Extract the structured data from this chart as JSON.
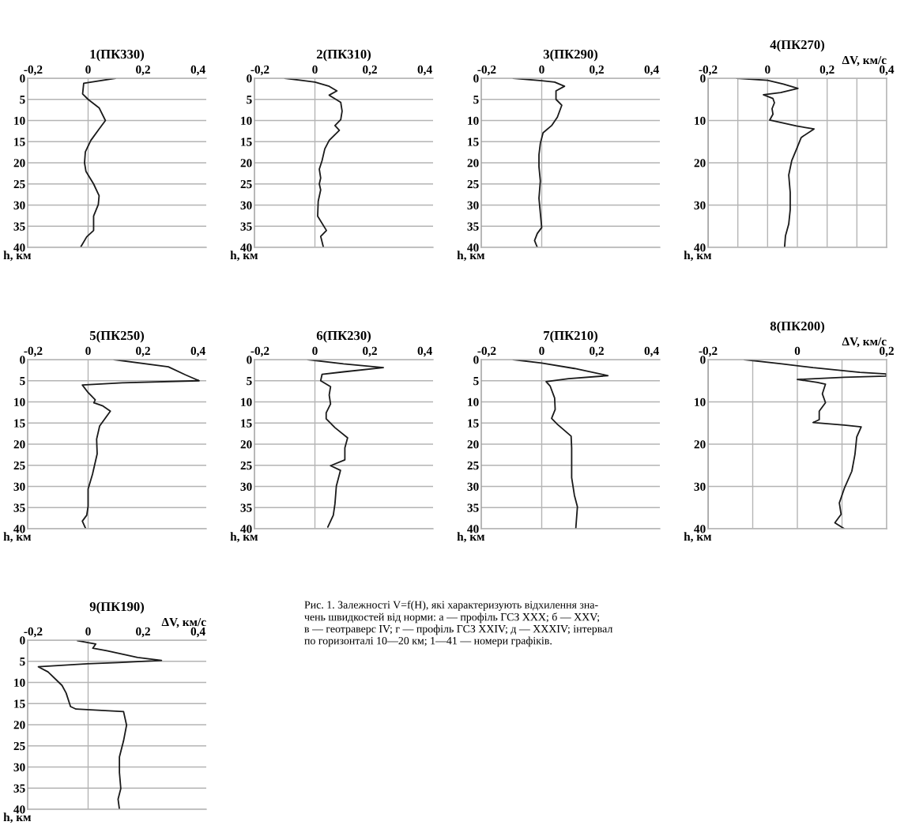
{
  "chart_data": [
    {
      "type": "line",
      "title": "1(ПК330)",
      "ylabel": "h, км",
      "xlim": [
        -0.22,
        0.43
      ],
      "xticks": [
        {
          "value": -0.2,
          "label": "-0,2"
        },
        0,
        {
          "value": 0.2,
          "label": "0,2"
        },
        {
          "value": 0.4,
          "label": "0,4"
        }
      ],
      "ylim": [
        40,
        0
      ],
      "yticks": [
        0,
        5,
        10,
        15,
        20,
        25,
        30,
        35,
        40
      ],
      "grid": "y",
      "ref_lines": [
        {
          "axis": "x",
          "value": 0,
          "color": "#b4b4b4"
        }
      ],
      "series": [
        {
          "color": "#1a1a1a",
          "x": [
            0.1,
            -0.016,
            -0.02,
            0,
            0.04,
            0.063,
            0.04,
            0.01,
            -0.01,
            -0.013,
            -0.008,
            0.02,
            0.04,
            0.037,
            0.02,
            0.02,
            -0.005,
            -0.026
          ],
          "values": [
            0,
            1.2,
            3.7,
            5,
            7,
            10,
            12,
            14.7,
            17.4,
            20,
            22,
            25,
            27.8,
            29.9,
            32.6,
            36,
            37.5,
            39.8
          ]
        }
      ]
    },
    {
      "type": "line",
      "title": "2(ПК310)",
      "ylabel": "h, км",
      "xlim": [
        -0.22,
        0.43
      ],
      "xticks": [
        {
          "value": -0.2,
          "label": "-0,2"
        },
        0,
        {
          "value": 0.2,
          "label": "0,2"
        },
        {
          "value": 0.4,
          "label": "0,4"
        }
      ],
      "ylim": [
        40,
        0
      ],
      "yticks": [
        0,
        5,
        10,
        15,
        20,
        25,
        30,
        35,
        40
      ],
      "grid": "y",
      "ref_lines": [
        {
          "axis": "x",
          "value": 0,
          "color": "#b4b4b4"
        }
      ],
      "series": [
        {
          "color": "#1a1a1a",
          "x": [
            -0.11,
            -0.05,
            0,
            0.052,
            0.08,
            0.052,
            0.094,
            0.099,
            0.094,
            0.073,
            0.089,
            0.052,
            0.036,
            0.026,
            0.016,
            0.021,
            0.016,
            0.021,
            0.012,
            0.01,
            0.042,
            0.021,
            0.031
          ],
          "values": [
            0,
            0.5,
            0.9,
            1.9,
            3,
            4,
            5.7,
            7.8,
            9.8,
            11.2,
            12.3,
            14.7,
            16.7,
            19.5,
            21.5,
            23.6,
            25,
            26.4,
            29.1,
            32.6,
            36,
            37.4,
            40
          ]
        }
      ]
    },
    {
      "type": "line",
      "title": "3(ПК290)",
      "ylabel": "h, км",
      "xlim": [
        -0.22,
        0.43
      ],
      "xticks": [
        {
          "value": -0.2,
          "label": "-0,2"
        },
        0,
        {
          "value": 0.2,
          "label": "0,2"
        },
        {
          "value": 0.4,
          "label": "0,4"
        }
      ],
      "ylim": [
        40,
        0
      ],
      "yticks": [
        0,
        5,
        10,
        15,
        20,
        25,
        30,
        35,
        40
      ],
      "grid": "y",
      "ref_lines": [
        {
          "axis": "x",
          "value": 0,
          "color": "#b4b4b4"
        }
      ],
      "series": [
        {
          "color": "#1a1a1a",
          "x": [
            -0.104,
            0,
            0.047,
            0.083,
            0.052,
            0.052,
            0.073,
            0.057,
            0.036,
            0.005,
            -0.005,
            -0.01,
            -0.01,
            -0.005,
            -0.01,
            -0.005,
            0,
            -0.016,
            -0.026,
            -0.016
          ],
          "values": [
            0,
            0.6,
            0.9,
            1.9,
            3,
            5,
            6.4,
            9.2,
            11.2,
            12.9,
            15.4,
            18.1,
            20.9,
            24.3,
            28.4,
            31.9,
            35.3,
            36.7,
            38.4,
            40
          ]
        }
      ]
    },
    {
      "type": "line",
      "title": "4(ПК270)",
      "xlabel": "ΔV, км/с",
      "ylabel": "h, км",
      "xlim": [
        -0.2,
        0.4
      ],
      "xticks": [
        {
          "value": -0.2,
          "label": "-0,2"
        },
        {
          "value": -0.1,
          "label": null
        },
        0,
        {
          "value": 0.1,
          "label": null
        },
        {
          "value": 0.2,
          "label": "0,2"
        },
        {
          "value": 0.3,
          "label": null
        },
        {
          "value": 0.4,
          "label": "0,4"
        }
      ],
      "ylim": [
        40,
        0
      ],
      "yticks": [
        0,
        10,
        20,
        30,
        40
      ],
      "grid": true,
      "series": [
        {
          "color": "#1a1a1a",
          "x": [
            -0.104,
            0,
            0.053,
            0.102,
            0.044,
            -0.014,
            0.018,
            0.023,
            0.015,
            0.018,
            0.007,
            0.097,
            0.156,
            0.113,
            0.097,
            0.081,
            0.071,
            0.076,
            0.076,
            0.071,
            0.06,
            0.057
          ],
          "values": [
            0,
            0.5,
            1.4,
            2.4,
            3.4,
            3.9,
            4.8,
            5.8,
            7.2,
            8.5,
            9.9,
            11.3,
            12,
            14,
            16.8,
            19.5,
            22.9,
            27,
            31.1,
            34.5,
            37.3,
            40
          ]
        }
      ]
    },
    {
      "type": "line",
      "title": "5(ПК250)",
      "ylabel": "h, км",
      "xlim": [
        -0.22,
        0.43
      ],
      "xticks": [
        {
          "value": -0.2,
          "label": "-0,2"
        },
        0,
        {
          "value": 0.2,
          "label": "0,2"
        },
        {
          "value": 0.4,
          "label": "0,4"
        }
      ],
      "ylim": [
        40,
        0
      ],
      "yticks": [
        0,
        5,
        10,
        15,
        20,
        25,
        30,
        35,
        40
      ],
      "grid": "y",
      "ref_lines": [
        {
          "axis": "x",
          "value": 0,
          "color": "#b4b4b4"
        }
      ],
      "series": [
        {
          "color": "#1a1a1a",
          "x": [
            0.094,
            0.292,
            0.354,
            0.404,
            0.125,
            -0.021,
            0,
            0.026,
            0.021,
            0.052,
            0.081,
            0.042,
            0.031,
            0.033,
            0.016,
            0,
            0,
            -0.005,
            -0.021,
            -0.01
          ],
          "values": [
            0,
            1.7,
            3.6,
            5,
            5.5,
            6,
            7.8,
            9.5,
            10.2,
            10.9,
            12.2,
            15.7,
            18.8,
            22.3,
            27.1,
            30.6,
            34.7,
            36.8,
            38.2,
            39.8
          ]
        }
      ]
    },
    {
      "type": "line",
      "title": "6(ПК230)",
      "ylabel": "h, км",
      "xlim": [
        -0.22,
        0.43
      ],
      "xticks": [
        {
          "value": -0.2,
          "label": "-0,2"
        },
        0,
        {
          "value": 0.2,
          "label": "0,2"
        },
        {
          "value": 0.4,
          "label": "0,4"
        }
      ],
      "ylim": [
        40,
        0
      ],
      "yticks": [
        0,
        5,
        10,
        15,
        20,
        25,
        30,
        35,
        40
      ],
      "grid": "y",
      "ref_lines": [
        {
          "axis": "x",
          "value": 0,
          "color": "#b4b4b4"
        }
      ],
      "series": [
        {
          "color": "#1a1a1a",
          "x": [
            -0.026,
            0.104,
            0.249,
            0.104,
            0.026,
            0.021,
            0.057,
            0.052,
            0.057,
            0.041,
            0.041,
            0.073,
            0.119,
            0.109,
            0.109,
            0.057,
            0.093,
            0.078,
            0.073,
            0.067,
            0.047
          ],
          "values": [
            0,
            1,
            1.9,
            2.9,
            3.5,
            5,
            6.4,
            8.4,
            10.5,
            12.6,
            14,
            16.1,
            18.5,
            20.9,
            23.7,
            25.1,
            26.2,
            29.9,
            34.1,
            36.8,
            39.6
          ]
        }
      ]
    },
    {
      "type": "line",
      "title": "7(ПК210)",
      "ylabel": "h, км",
      "xlim": [
        -0.22,
        0.43
      ],
      "xticks": [
        {
          "value": -0.2,
          "label": "-0,2"
        },
        0,
        {
          "value": 0.2,
          "label": "0,2"
        },
        {
          "value": 0.4,
          "label": "0,4"
        }
      ],
      "ylim": [
        40,
        0
      ],
      "yticks": [
        0,
        5,
        10,
        15,
        20,
        25,
        30,
        35,
        40
      ],
      "grid": "y",
      "ref_lines": [
        {
          "axis": "x",
          "value": 0,
          "color": "#b4b4b4"
        }
      ],
      "series": [
        {
          "color": "#1a1a1a",
          "x": [
            -0.104,
            0,
            0.119,
            0.241,
            0.098,
            0.016,
            0.031,
            0.047,
            0.049,
            0.036,
            0.057,
            0.107,
            0.109,
            0.109,
            0.119,
            0.13,
            0.124
          ],
          "values": [
            0,
            0.8,
            2.1,
            3.8,
            4.5,
            5.2,
            6.3,
            9.1,
            11.8,
            13.9,
            15.3,
            18.1,
            20.9,
            27.9,
            32.1,
            34.8,
            40
          ]
        }
      ]
    },
    {
      "type": "line",
      "title": "8(ПК200)",
      "xlabel": "ΔV, км/с",
      "ylabel": "h, км",
      "xlim": [
        -0.2,
        0.2
      ],
      "xticks": [
        {
          "value": -0.2,
          "label": "-0,2"
        },
        {
          "value": -0.1,
          "label": null
        },
        0,
        {
          "value": 0.1,
          "label": null
        },
        {
          "value": 0.2,
          "label": "0,2"
        }
      ],
      "ylim": [
        40,
        0
      ],
      "yticks": [
        0,
        10,
        20,
        30,
        40
      ],
      "grid": true,
      "series": [
        {
          "color": "#1a1a1a",
          "x": [
            -0.119,
            -0.035,
            0.035,
            0.14,
            0.199,
            0.199,
            0.105,
            0,
            0.045,
            0.063,
            0.056,
            0.063,
            0.049,
            0.049,
            0.035,
            0.105,
            0.143,
            0.133,
            0.129,
            0.122,
            0.105,
            0.094,
            0.098,
            0.084,
            0.105
          ],
          "values": [
            0,
            1,
            1.9,
            3,
            3.4,
            3.9,
            4.2,
            4.7,
            5.4,
            5.8,
            8.1,
            10.2,
            12.2,
            14.2,
            14.9,
            15.5,
            15.9,
            18.3,
            22.4,
            26.4,
            30.5,
            33.9,
            36.6,
            38.6,
            40
          ]
        }
      ]
    },
    {
      "type": "line",
      "title": "9(ПК190)",
      "xlabel": "ΔV, км/с",
      "ylabel": "h, км",
      "xlim": [
        -0.22,
        0.43
      ],
      "xticks": [
        {
          "value": -0.2,
          "label": "-0,2"
        },
        0,
        {
          "value": 0.2,
          "label": "0,2"
        },
        {
          "value": 0.4,
          "label": "0,4"
        }
      ],
      "ylim": [
        40,
        0
      ],
      "yticks": [
        0,
        5,
        10,
        15,
        20,
        25,
        30,
        35,
        40
      ],
      "grid": "y",
      "ref_lines": [
        {
          "axis": "x",
          "value": 0,
          "color": "#b4b4b4"
        }
      ],
      "series": [
        {
          "color": "#1a1a1a",
          "x": [
            -0.039,
            0,
            0.028,
            0.017,
            0.068,
            0.18,
            0.267,
            0.109,
            -0.003,
            -0.181,
            -0.146,
            -0.095,
            -0.08,
            -0.064,
            -0.044,
            0.129,
            0.14,
            0.129,
            0.114,
            0.114,
            0.119,
            0.109,
            0.114
          ],
          "values": [
            0.1,
            0.6,
            0.9,
            1.9,
            2.5,
            4.1,
            4.8,
            5.3,
            5.6,
            6.3,
            7.5,
            10.7,
            12.5,
            15.7,
            16.3,
            16.9,
            20.1,
            23.8,
            27.6,
            31.3,
            35.1,
            37.6,
            40
          ]
        }
      ]
    },
    {
      "type": "other",
      "annotations": [
        "Рис. 1. Залежності V=f(H), які характеризують відхилення зна-\nчень швидкостей від норми: а — профіль ГСЗ XXX; б — XXV;\nв — геотраверс IV; г — профіль ГСЗ XXIV; д — XXXIV; інтервал\nпо горизонталі 10—20 км; 1—41 — номери графіків."
      ]
    }
  ]
}
